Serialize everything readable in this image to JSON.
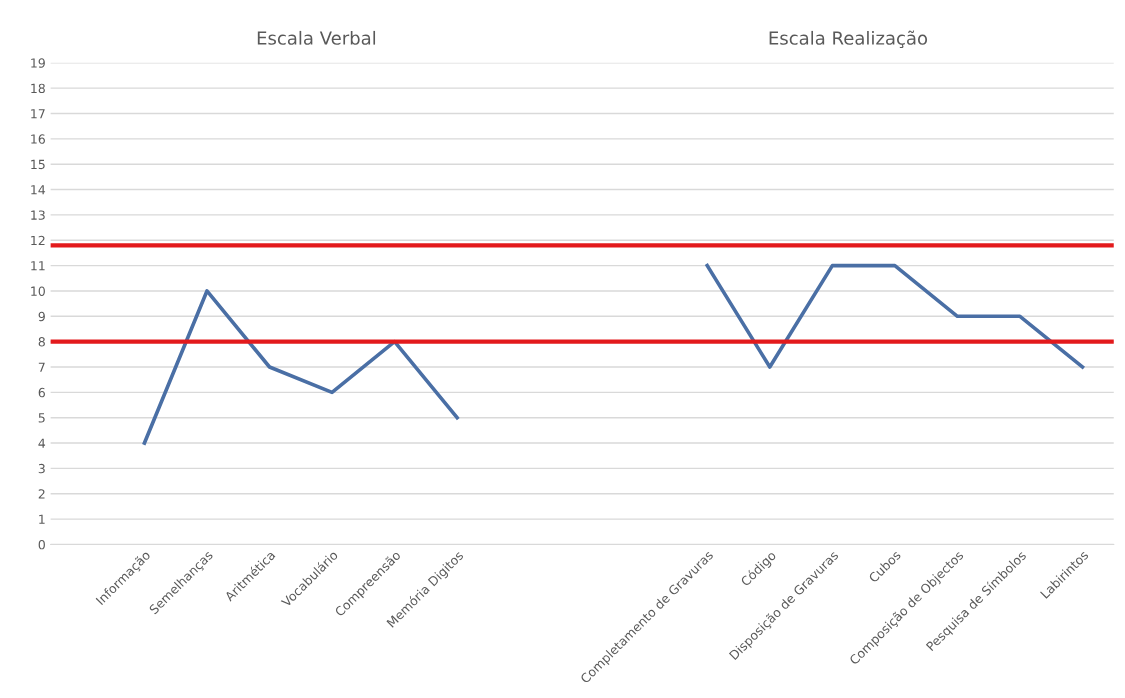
{
  "chart_data": {
    "type": "line",
    "categories": [
      null,
      "Informação",
      "Semelhanças",
      "Aritmética",
      "Vocabulário",
      "Compreensão",
      "Memória Digitos",
      null,
      null,
      null,
      "Completamento de Gravuras",
      "Código",
      "Disposição de Gravuras",
      "Cubos",
      "Composição de Objectos",
      "Pesquisa de Símbolos",
      "Labirintos"
    ],
    "series": [
      {
        "color": "#4a6fa5",
        "values": [
          null,
          4,
          10,
          7,
          6,
          8,
          5,
          null,
          null,
          null,
          11,
          7,
          11,
          11,
          9,
          9,
          7
        ]
      }
    ],
    "ylim": [
      0,
      19
    ],
    "yticks": [
      0,
      1,
      2,
      3,
      4,
      5,
      6,
      7,
      8,
      9,
      10,
      11,
      12,
      13,
      14,
      15,
      16,
      17,
      18,
      19
    ],
    "grid": "y",
    "legend": false,
    "marker": "none",
    "line_style": "solid",
    "ref_lines": [
      {
        "axis": "y",
        "value": 11.8,
        "color": "#e31a1c"
      },
      {
        "axis": "y",
        "value": 8,
        "color": "#e31a1c"
      }
    ],
    "annotations": [
      "Escala Verbal",
      "Escala Realização"
    ]
  }
}
